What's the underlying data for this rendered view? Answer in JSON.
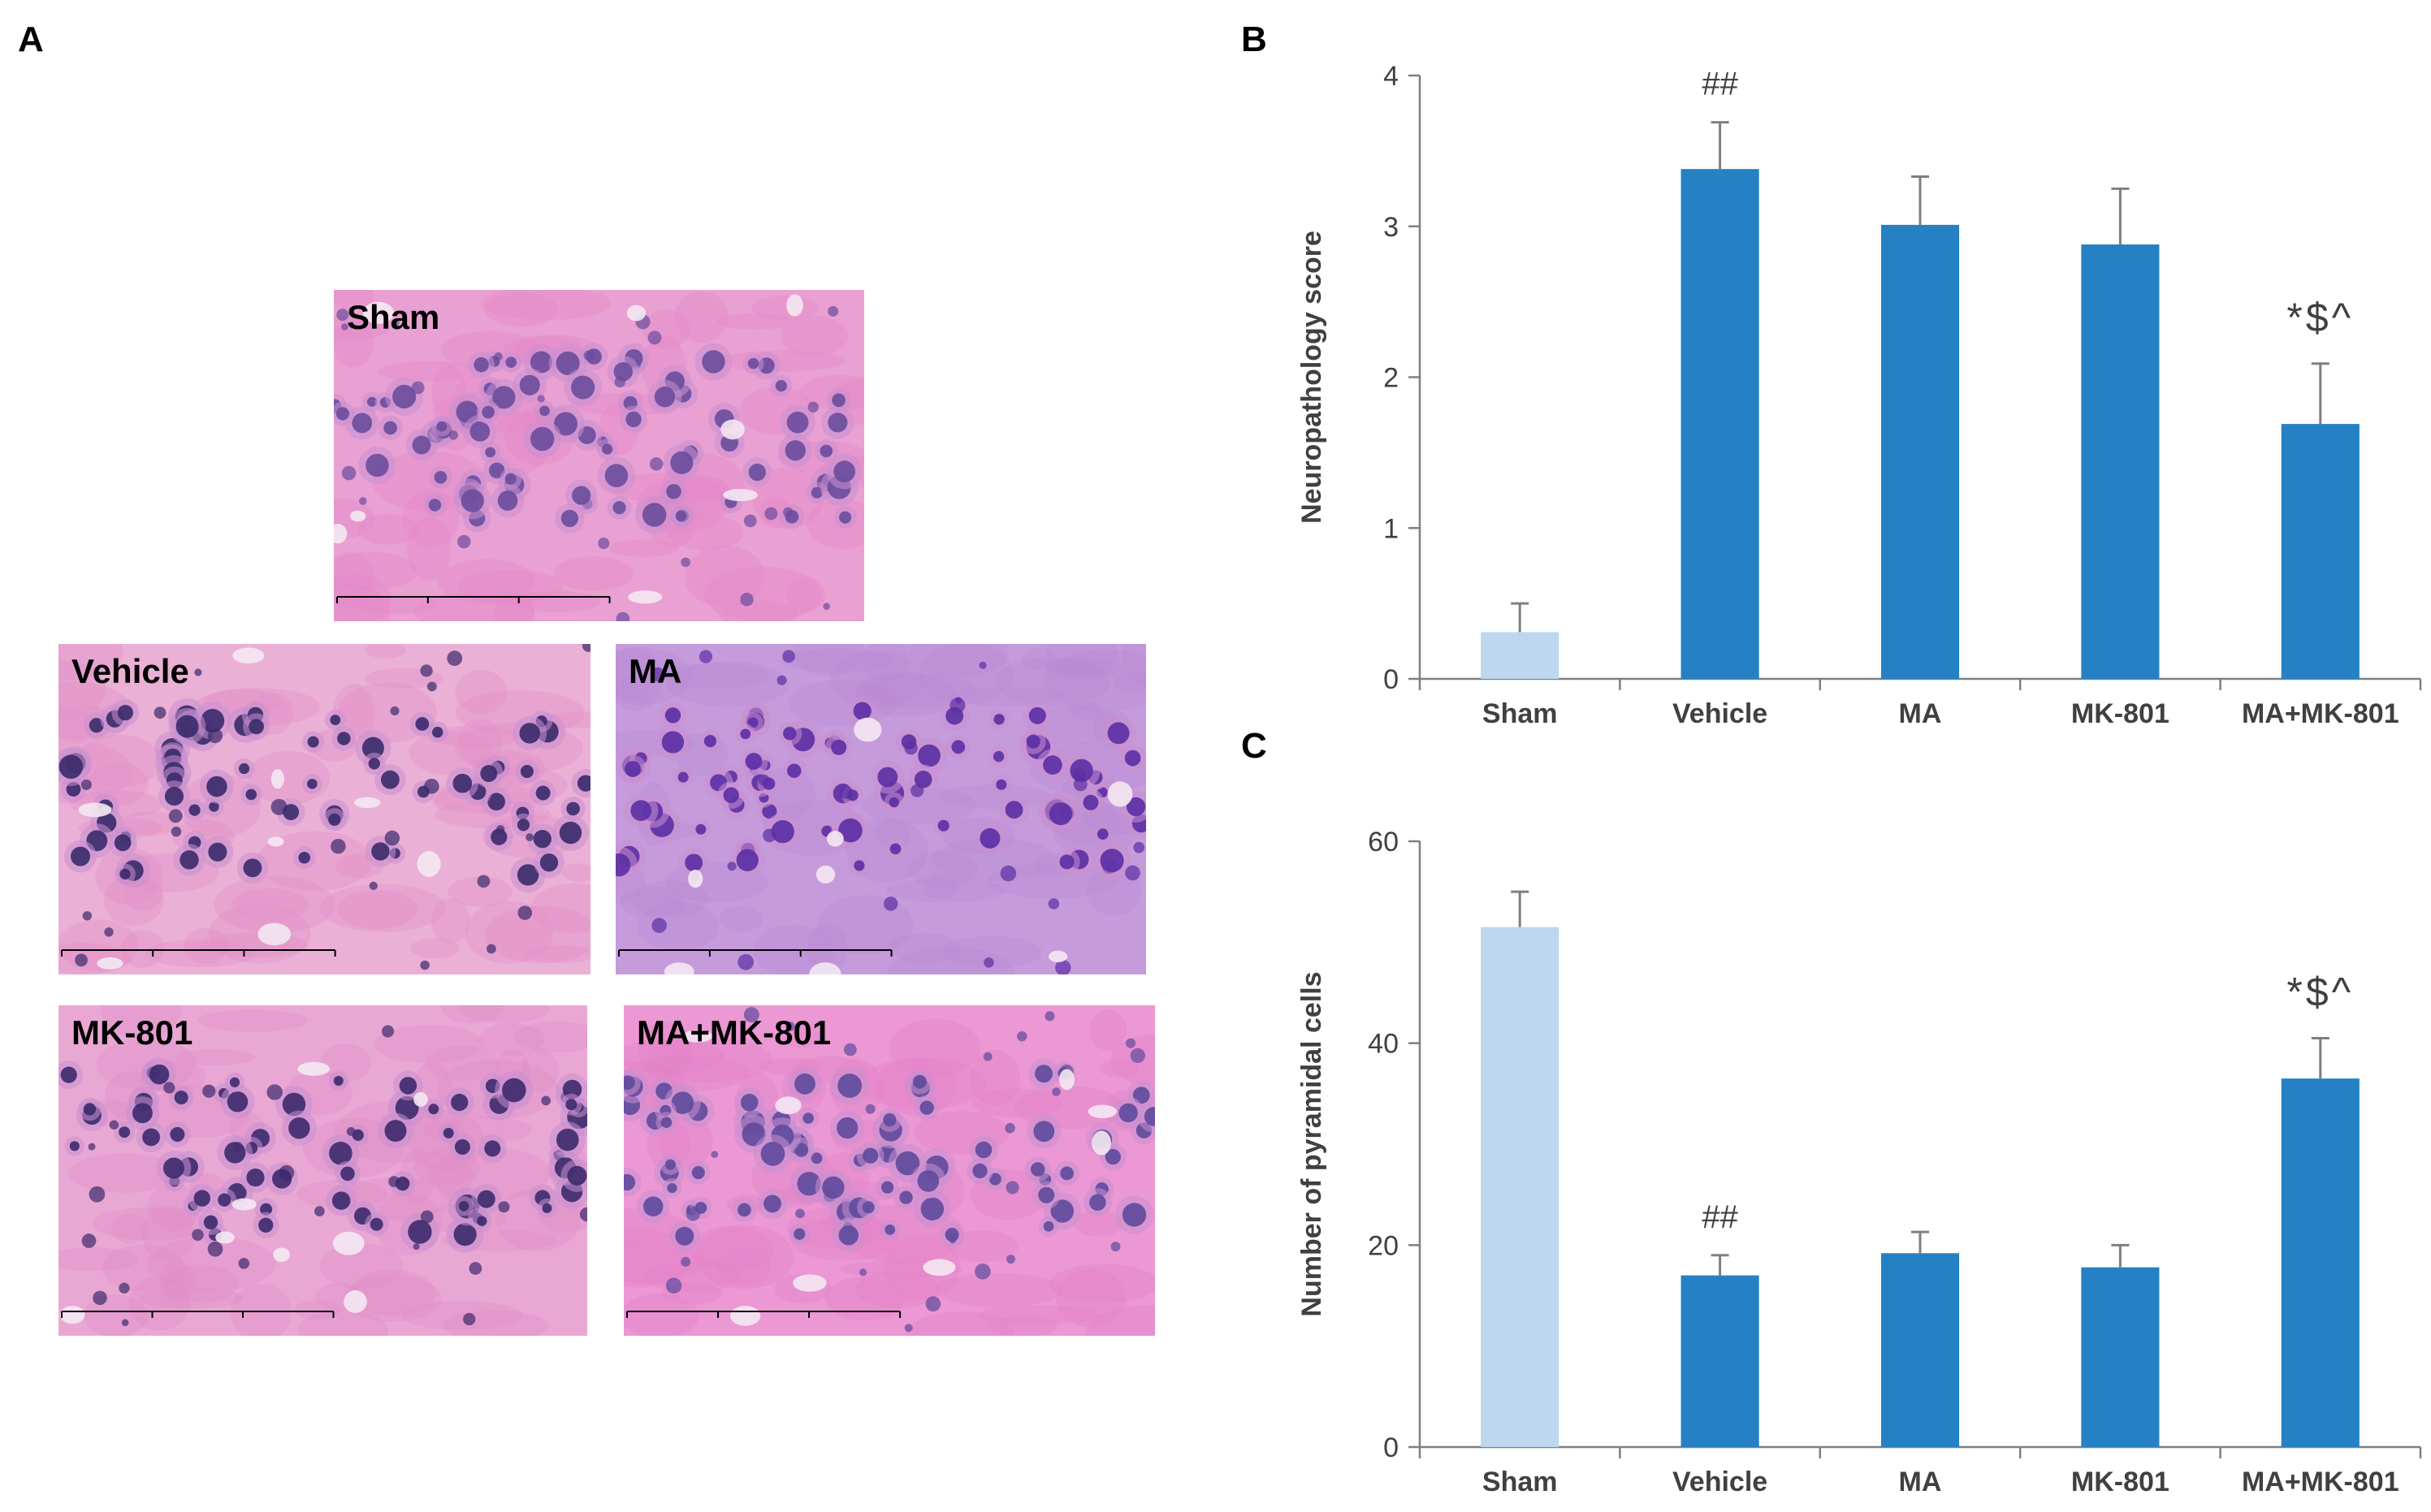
{
  "panels": {
    "a": "A",
    "b": "B",
    "c": "C"
  },
  "micrographs": [
    {
      "key": "sham",
      "label": "Sham",
      "tone": "#e486c8",
      "bg": "#e9a0d2",
      "nuclei": "#6a4c9c",
      "dense": 0.6
    },
    {
      "key": "vehicle",
      "label": "Vehicle",
      "tone": "#e28fc6",
      "bg": "#eab0d6",
      "nuclei": "#3a2a6a",
      "dense": 0.45
    },
    {
      "key": "ma",
      "label": "MA",
      "tone": "#b98ad3",
      "bg": "#c59bdc",
      "nuclei": "#5b2fa4",
      "dense": 0.55
    },
    {
      "key": "mk801",
      "label": "MK-801",
      "tone": "#e08cc6",
      "bg": "#e9a8d4",
      "nuclei": "#3c2a6c",
      "dense": 0.45
    },
    {
      "key": "mamk801",
      "label": "MA+MK-801",
      "tone": "#e280c6",
      "bg": "#eb98d4",
      "nuclei": "#5e4a9c",
      "dense": 0.6
    }
  ],
  "colors": {
    "light_bar": "#bdd7ee",
    "dark_bar": "#2681c4",
    "axis": "#7f7f7f",
    "text": "#404040"
  },
  "chart_data": [
    {
      "type": "bar",
      "panel": "B",
      "categories": [
        "Sham",
        "Vehicle",
        "MA",
        "MK-801",
        "MA+MK-801"
      ],
      "values": [
        0.31,
        3.38,
        3.01,
        2.88,
        1.69
      ],
      "errors": [
        0.19,
        0.31,
        0.32,
        0.37,
        0.4
      ],
      "annotations": [
        "",
        "##",
        "",
        "",
        "*$^"
      ],
      "ylabel": "Neuropathology score",
      "xlabel": "",
      "ylim": [
        0,
        4
      ],
      "yticks": [
        0,
        1,
        2,
        3,
        4
      ],
      "grid": false
    },
    {
      "type": "bar",
      "panel": "C",
      "categories": [
        "Sham",
        "Vehicle",
        "MA",
        "MK-801",
        "MA+MK-801"
      ],
      "values": [
        51.5,
        17.0,
        19.2,
        17.8,
        36.5
      ],
      "errors": [
        3.5,
        2.0,
        2.1,
        2.2,
        4.0
      ],
      "annotations": [
        "",
        "##",
        "",
        "",
        "*$^"
      ],
      "ylabel": "Number of pyramidal cells",
      "xlabel": "",
      "ylim": [
        0,
        60
      ],
      "yticks": [
        0,
        20,
        40,
        60
      ],
      "grid": false
    }
  ]
}
